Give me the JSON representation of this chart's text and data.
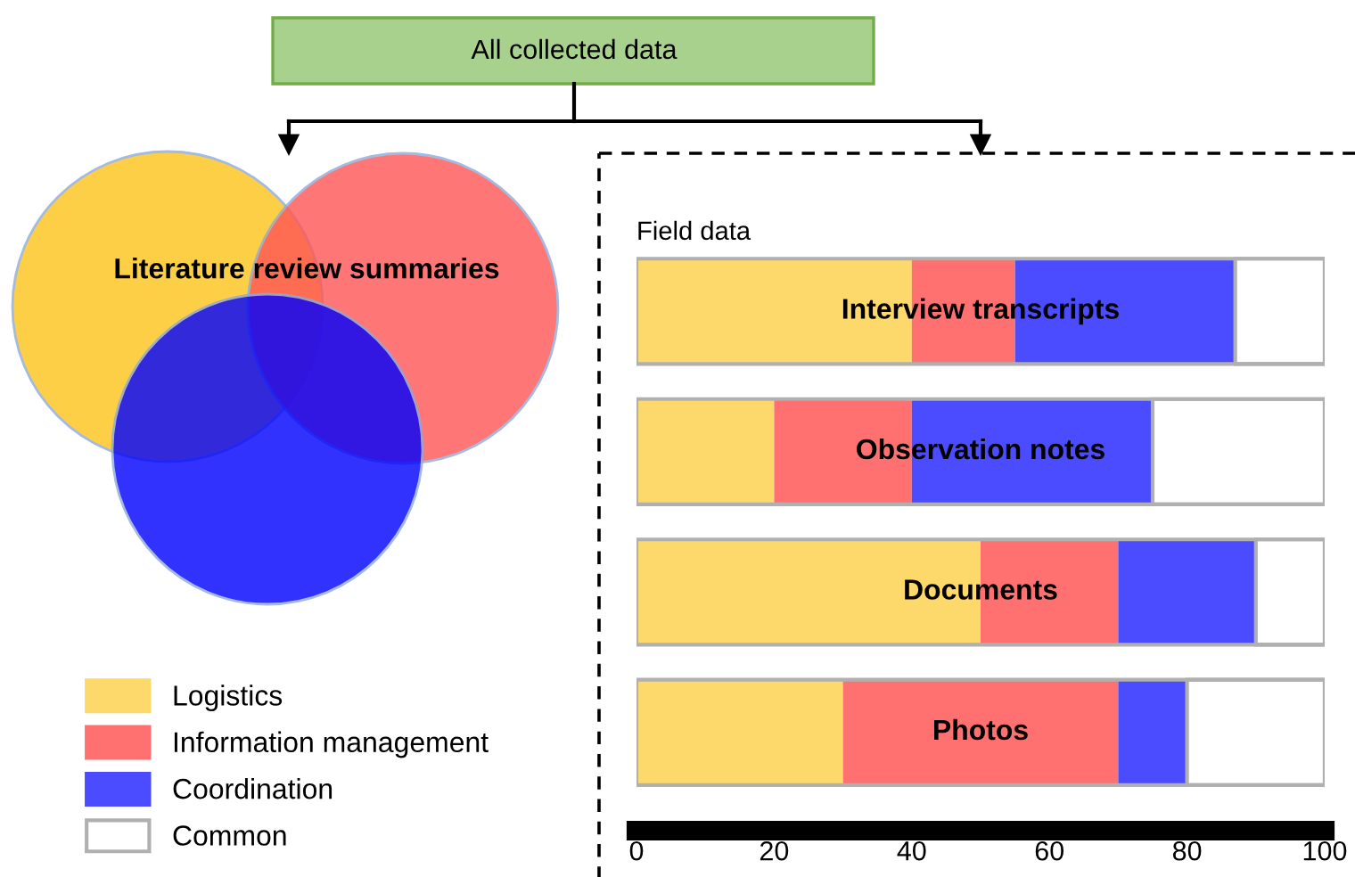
{
  "chart_data": {
    "type": "bar",
    "orientation": "horizontal",
    "stacked": true,
    "title": "Field data",
    "categories": [
      "Interview transcripts",
      "Observation notes",
      "Documents",
      "Photos"
    ],
    "series": [
      {
        "name": "Logistics",
        "color": "#fcd96a",
        "values": [
          40,
          20,
          50,
          30
        ]
      },
      {
        "name": "Information management",
        "color": "#ff7070",
        "values": [
          15,
          20,
          20,
          40
        ]
      },
      {
        "name": "Coordination",
        "color": "#4b4bff",
        "values": [
          32,
          35,
          20,
          10
        ]
      },
      {
        "name": "Common",
        "color": "#ffffff",
        "values": [
          13,
          25,
          10,
          20
        ]
      }
    ],
    "xlim": [
      0,
      100
    ],
    "xticks": [
      0,
      20,
      40,
      60,
      80,
      100
    ],
    "grid": false,
    "legend": "bottom left",
    "annotations": [
      "All collected data",
      "Literature review summaries"
    ]
  }
}
